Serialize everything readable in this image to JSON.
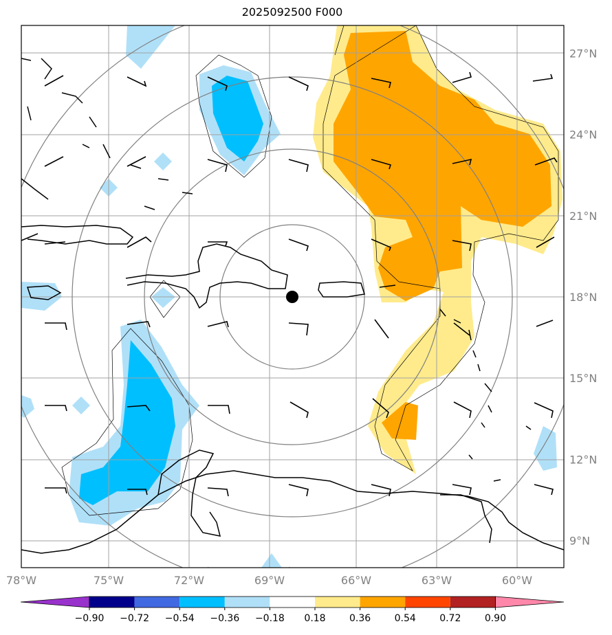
{
  "title": "2025092500 F000",
  "lat_labels": [
    {
      "value": 27,
      "text": "27°N"
    },
    {
      "value": 24,
      "text": "24°N"
    },
    {
      "value": 21,
      "text": "21°N"
    },
    {
      "value": 18,
      "text": "18°N"
    },
    {
      "value": 15,
      "text": "15°N"
    },
    {
      "value": 12,
      "text": "12°N"
    },
    {
      "value": 9,
      "text": "9°N"
    }
  ],
  "lon_labels": [
    {
      "value": -78,
      "text": "78°W"
    },
    {
      "value": -75,
      "text": "75°W"
    },
    {
      "value": -72,
      "text": "72°W"
    },
    {
      "value": -69,
      "text": "69°W"
    },
    {
      "value": -66,
      "text": "66°W"
    },
    {
      "value": -63,
      "text": "63°W"
    },
    {
      "value": -60,
      "text": "60°W"
    }
  ],
  "center": {
    "lon": -68.3,
    "lat": 18.0
  },
  "colorbar": {
    "ticks": [
      "−0.90",
      "−0.72",
      "−0.54",
      "−0.36",
      "−0.18",
      "0.18",
      "0.36",
      "0.54",
      "0.72",
      "0.90"
    ],
    "colors": [
      "#9932cc",
      "#00008b",
      "#4169e1",
      "#00bfff",
      "#b0e0f8",
      "#ffffff",
      "#ffeb8c",
      "#ffa500",
      "#ff4500",
      "#b22222",
      "#ff88aa"
    ]
  },
  "colors": {
    "light_blue": "#b0e0f8",
    "blue": "#00bfff",
    "light_yellow": "#ffeb8c",
    "orange": "#ffa500",
    "grid": "#a0a0a0",
    "rings": "#808080"
  }
}
